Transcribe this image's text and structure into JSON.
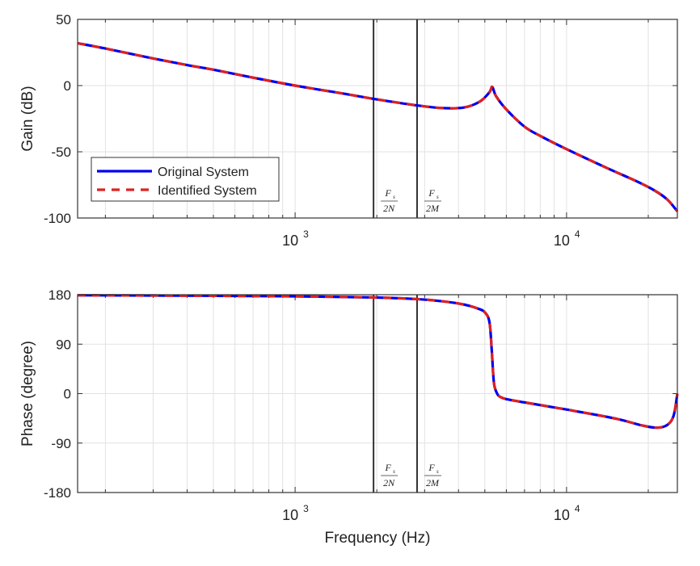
{
  "chart_data": [
    {
      "type": "line",
      "xscale": "log",
      "xlim": [
        158,
        25600
      ],
      "ylim": [
        -100,
        50
      ],
      "ylabel": "Gain (dB)",
      "xlabel": "",
      "yticks": [
        "50",
        "0",
        "-50",
        "-100"
      ],
      "ytick_values": [
        50,
        0,
        -50,
        -100
      ],
      "xticks": [
        {
          "base": "10",
          "exp": "3",
          "value": 1000
        },
        {
          "base": "10",
          "exp": "4",
          "value": 10000
        }
      ],
      "grid": true,
      "legend": {
        "placement": "bottom-left",
        "entries": [
          "Original System",
          "Identified System"
        ]
      },
      "vlines": [
        {
          "x": 1945,
          "label_num": "F",
          "label_sub": "s",
          "label_den": "2N"
        },
        {
          "x": 2814,
          "label_num": "F",
          "label_sub": "s",
          "label_den": "2M"
        }
      ],
      "x": [
        158,
        200,
        300,
        400,
        500,
        700,
        1000,
        1500,
        1945,
        2814,
        3500,
        4200,
        4800,
        5200,
        5325,
        5500,
        6000,
        7000,
        8000,
        10000,
        14000,
        18000,
        21000,
        23500,
        25600
      ],
      "series": [
        {
          "name": "Original System",
          "color": "#0000ee",
          "style": "solid",
          "values": [
            32,
            28,
            20.5,
            15.5,
            12,
            6,
            0,
            -6,
            -10,
            -15,
            -17,
            -16.5,
            -12,
            -5,
            -1,
            -8,
            -18,
            -31,
            -38,
            -48,
            -62,
            -72,
            -79,
            -86,
            -95
          ]
        },
        {
          "name": "Identified System",
          "color": "#dd2222",
          "style": "dashed",
          "values": [
            32,
            28,
            20.5,
            15.5,
            12,
            6,
            0,
            -6,
            -10,
            -15,
            -17,
            -16.5,
            -12,
            -5,
            -1,
            -8,
            -18,
            -31,
            -38,
            -48,
            -62,
            -72,
            -79,
            -86,
            -95
          ]
        }
      ]
    },
    {
      "type": "line",
      "xscale": "log",
      "xlim": [
        158,
        25600
      ],
      "ylim": [
        -180,
        180
      ],
      "ylabel": "Phase (degree)",
      "xlabel": "Frequency (Hz)",
      "yticks": [
        "180",
        "90",
        "0",
        "-90",
        "-180"
      ],
      "ytick_values": [
        180,
        90,
        0,
        -90,
        -180
      ],
      "xticks": [
        {
          "base": "10",
          "exp": "3",
          "value": 1000
        },
        {
          "base": "10",
          "exp": "4",
          "value": 10000
        }
      ],
      "grid": true,
      "vlines": [
        {
          "x": 1945,
          "label_num": "F",
          "label_sub": "s",
          "label_den": "2N"
        },
        {
          "x": 2814,
          "label_num": "F",
          "label_sub": "s",
          "label_den": "2M"
        }
      ],
      "x": [
        158,
        500,
        1000,
        1945,
        2814,
        3500,
        4200,
        4700,
        5000,
        5200,
        5300,
        5400,
        5550,
        5700,
        6000,
        7000,
        10000,
        15000,
        19000,
        21500,
        23500,
        24800,
        25600
      ],
      "series": [
        {
          "name": "Original System",
          "color": "#0000ee",
          "style": "solid",
          "values": [
            179,
            178,
            177,
            175,
            172,
            168,
            162,
            155,
            148,
            130,
            80,
            20,
            0,
            -6,
            -10,
            -16,
            -29,
            -45,
            -58,
            -62,
            -57,
            -40,
            0
          ]
        },
        {
          "name": "Identified System",
          "color": "#dd2222",
          "style": "dashed",
          "values": [
            179,
            178,
            177,
            175,
            172,
            168,
            162,
            155,
            148,
            130,
            80,
            20,
            0,
            -6,
            -10,
            -16,
            -29,
            -45,
            -58,
            -62,
            -57,
            -40,
            0
          ]
        }
      ]
    }
  ]
}
